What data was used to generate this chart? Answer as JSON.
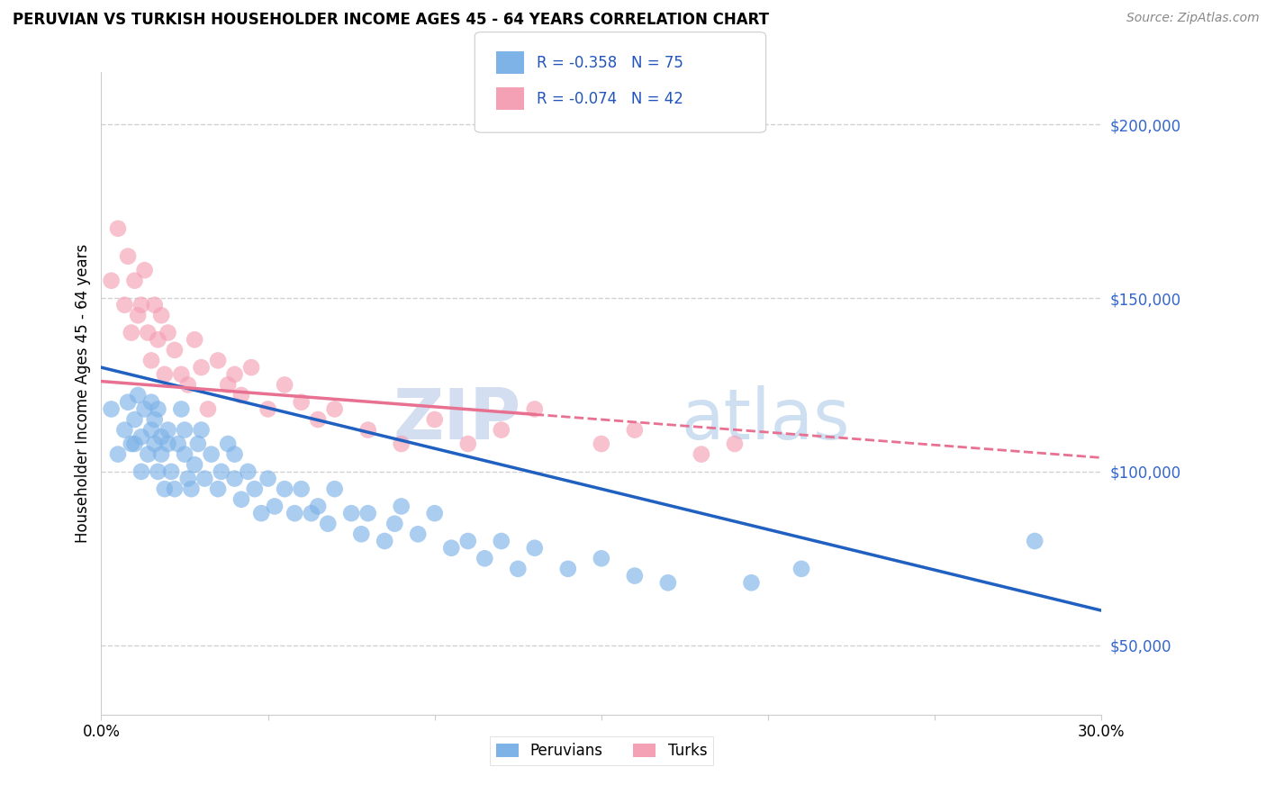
{
  "title": "PERUVIAN VS TURKISH HOUSEHOLDER INCOME AGES 45 - 64 YEARS CORRELATION CHART",
  "source": "Source: ZipAtlas.com",
  "ylabel": "Householder Income Ages 45 - 64 years",
  "xlim": [
    0.0,
    0.3
  ],
  "ylim": [
    30000,
    215000
  ],
  "yticks": [
    50000,
    100000,
    150000,
    200000
  ],
  "ytick_labels": [
    "$50,000",
    "$100,000",
    "$150,000",
    "$200,000"
  ],
  "xticks": [
    0.0,
    0.05,
    0.1,
    0.15,
    0.2,
    0.25,
    0.3
  ],
  "xtick_labels": [
    "0.0%",
    "",
    "",
    "",
    "",
    "",
    "30.0%"
  ],
  "legend_r_peruvian": "R = -0.358",
  "legend_n_peruvian": "N = 75",
  "legend_r_turk": "R = -0.074",
  "legend_n_turk": "N = 42",
  "peruvian_color": "#7EB3E8",
  "turk_color": "#F4A0B5",
  "peruvian_line_color": "#2060C0",
  "turk_line_color": "#E87090",
  "watermark_zip": "ZIP",
  "watermark_atlas": "atlas",
  "background_color": "#ffffff",
  "peruvian_x": [
    0.003,
    0.005,
    0.007,
    0.008,
    0.009,
    0.01,
    0.01,
    0.011,
    0.012,
    0.012,
    0.013,
    0.014,
    0.015,
    0.015,
    0.016,
    0.016,
    0.017,
    0.017,
    0.018,
    0.018,
    0.019,
    0.02,
    0.02,
    0.021,
    0.022,
    0.023,
    0.024,
    0.025,
    0.025,
    0.026,
    0.027,
    0.028,
    0.029,
    0.03,
    0.031,
    0.033,
    0.035,
    0.036,
    0.038,
    0.04,
    0.04,
    0.042,
    0.044,
    0.046,
    0.048,
    0.05,
    0.052,
    0.055,
    0.058,
    0.06,
    0.063,
    0.065,
    0.068,
    0.07,
    0.075,
    0.078,
    0.08,
    0.085,
    0.088,
    0.09,
    0.095,
    0.1,
    0.105,
    0.11,
    0.115,
    0.12,
    0.125,
    0.13,
    0.14,
    0.15,
    0.16,
    0.17,
    0.195,
    0.21,
    0.28
  ],
  "peruvian_y": [
    118000,
    105000,
    112000,
    120000,
    108000,
    115000,
    108000,
    122000,
    100000,
    110000,
    118000,
    105000,
    112000,
    120000,
    108000,
    115000,
    100000,
    118000,
    105000,
    110000,
    95000,
    108000,
    112000,
    100000,
    95000,
    108000,
    118000,
    105000,
    112000,
    98000,
    95000,
    102000,
    108000,
    112000,
    98000,
    105000,
    95000,
    100000,
    108000,
    98000,
    105000,
    92000,
    100000,
    95000,
    88000,
    98000,
    90000,
    95000,
    88000,
    95000,
    88000,
    90000,
    85000,
    95000,
    88000,
    82000,
    88000,
    80000,
    85000,
    90000,
    82000,
    88000,
    78000,
    80000,
    75000,
    80000,
    72000,
    78000,
    72000,
    75000,
    70000,
    68000,
    68000,
    72000,
    80000
  ],
  "turk_x": [
    0.003,
    0.005,
    0.007,
    0.008,
    0.009,
    0.01,
    0.011,
    0.012,
    0.013,
    0.014,
    0.015,
    0.016,
    0.017,
    0.018,
    0.019,
    0.02,
    0.022,
    0.024,
    0.026,
    0.028,
    0.03,
    0.032,
    0.035,
    0.038,
    0.04,
    0.042,
    0.045,
    0.05,
    0.055,
    0.06,
    0.065,
    0.07,
    0.08,
    0.09,
    0.1,
    0.11,
    0.12,
    0.13,
    0.15,
    0.16,
    0.18,
    0.19
  ],
  "turk_y": [
    155000,
    170000,
    148000,
    162000,
    140000,
    155000,
    145000,
    148000,
    158000,
    140000,
    132000,
    148000,
    138000,
    145000,
    128000,
    140000,
    135000,
    128000,
    125000,
    138000,
    130000,
    118000,
    132000,
    125000,
    128000,
    122000,
    130000,
    118000,
    125000,
    120000,
    115000,
    118000,
    112000,
    108000,
    115000,
    108000,
    112000,
    118000,
    108000,
    112000,
    105000,
    108000
  ]
}
